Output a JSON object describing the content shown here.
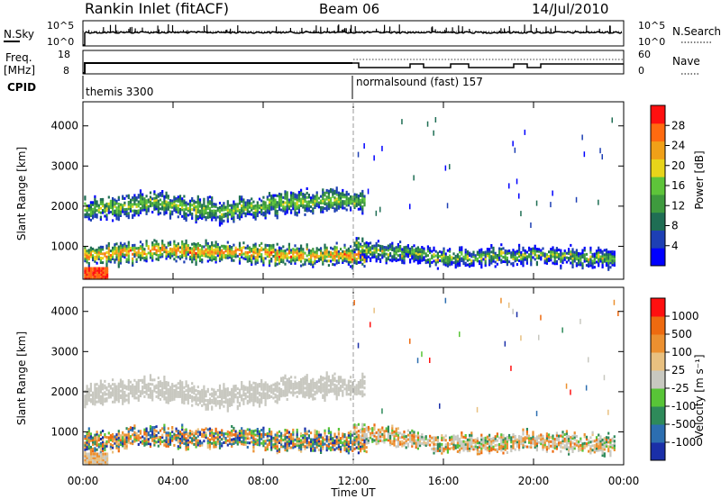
{
  "header": {
    "title": "Rankin Inlet (fitACF)",
    "beam": "Beam 06",
    "date": "14/Jul/2010"
  },
  "top_panels": {
    "nsky_label": "N.Sky",
    "nsky_ticks": [
      "10^5",
      "10^0"
    ],
    "nsearch_label": "N.Search",
    "nsearch_ticks": [
      "10^5",
      "10^0"
    ],
    "freq_label": "Freq.",
    "freq_unit": "[MHz]",
    "freq_ticks": [
      "18",
      "8"
    ],
    "nave_label": "Nave",
    "nave_ticks": [
      "60",
      "0"
    ],
    "cpid_label": "CPID",
    "cpid_segments": [
      "themis 3300",
      "normalsound (fast) 157"
    ]
  },
  "chart_data": [
    {
      "type": "heatmap",
      "panel": "power",
      "ylabel": "Slant Range [km]",
      "xlabel": "",
      "yticks": [
        1000,
        2000,
        3000,
        4000
      ],
      "ylim": [
        180,
        4600
      ],
      "xlim": [
        0,
        24
      ],
      "colorbar": {
        "label": "Power [dB]",
        "ticks": [
          "28",
          "24",
          "20",
          "16",
          "12",
          "8",
          "4"
        ],
        "colors": [
          "#0000ff",
          "#1d3fb4",
          "#1f6e54",
          "#3e9a3e",
          "#5ec43a",
          "#e8d41a",
          "#f0a018",
          "#ff6a10",
          "#ff1010"
        ]
      },
      "bands": [
        {
          "t": [
            0,
            3,
            6,
            9,
            11.9
          ],
          "center_km": [
            1900,
            2100,
            1850,
            2100,
            2150
          ],
          "width_km": 500,
          "level": "12-20 dB"
        },
        {
          "t": [
            0,
            3,
            6,
            9,
            12
          ],
          "center_km": [
            750,
            900,
            850,
            800,
            750
          ],
          "width_km": 450,
          "level": "20-28 dB"
        },
        {
          "t": [
            12,
            16,
            20,
            23
          ],
          "center_km": [
            1000,
            700,
            800,
            700
          ],
          "width_km": 400,
          "level": "8-24 dB"
        }
      ]
    },
    {
      "type": "heatmap",
      "panel": "velocity",
      "ylabel": "Slant Range [km]",
      "xlabel": "Time UT",
      "xticks": [
        "00:00",
        "04:00",
        "08:00",
        "12:00",
        "16:00",
        "20:00",
        "00:00"
      ],
      "yticks": [
        1000,
        2000,
        3000,
        4000
      ],
      "ylim": [
        180,
        4600
      ],
      "xlim": [
        0,
        24
      ],
      "colorbar": {
        "label": "Velocity [m s⁻¹]",
        "ticks": [
          "1000",
          "500",
          "100",
          "25",
          "-25",
          "-100",
          "-500",
          "-1000"
        ],
        "colors": [
          "#1a2fa8",
          "#2c6eb0",
          "#2e8a5a",
          "#58c437",
          "#c8c8c0",
          "#e8c080",
          "#ec9030",
          "#ee6a10",
          "#ff1010"
        ]
      },
      "bands": [
        {
          "t": [
            0,
            3,
            6,
            9,
            11.9
          ],
          "center_km": [
            1900,
            2100,
            1850,
            2100,
            2150
          ],
          "width_km": 500,
          "level": "ground scatter (grey)"
        },
        {
          "t": [
            0,
            3,
            6,
            9,
            12
          ],
          "center_km": [
            750,
            900,
            850,
            800,
            750
          ],
          "width_km": 450,
          "level": "-500 to 1000 m/s"
        },
        {
          "t": [
            12,
            16,
            20,
            23
          ],
          "center_km": [
            1000,
            700,
            800,
            700
          ],
          "width_km": 400,
          "level": "-500 to 100 m/s"
        }
      ]
    }
  ]
}
